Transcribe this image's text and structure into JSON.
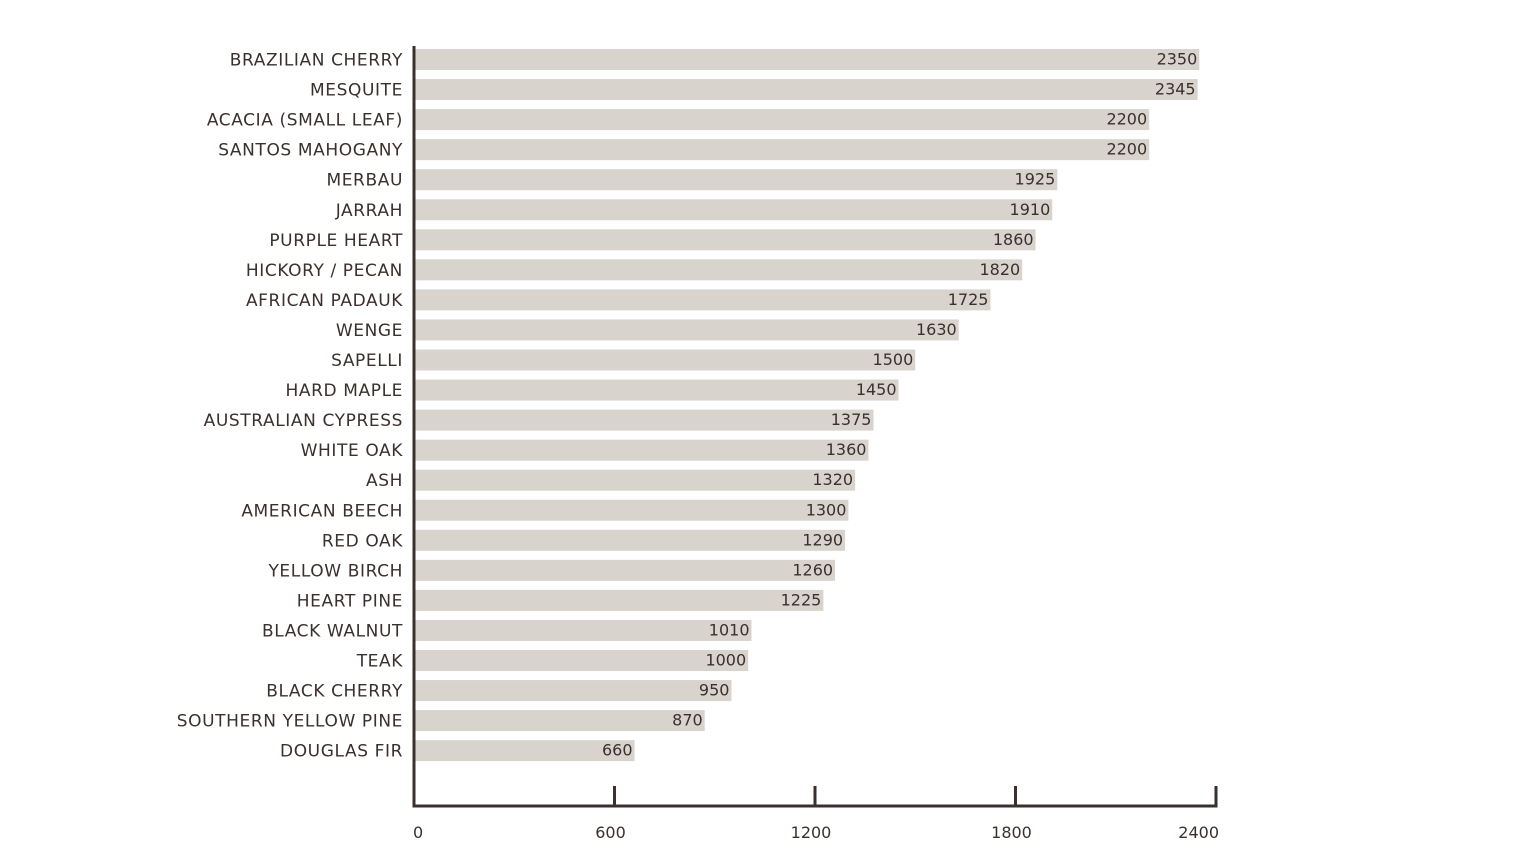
{
  "chart_data": {
    "type": "bar",
    "orientation": "horizontal",
    "title": "",
    "xlabel": "",
    "ylabel": "",
    "xlim": [
      0,
      2400
    ],
    "x_ticks": [
      "0",
      "600",
      "1200",
      "1800",
      "2400"
    ],
    "grid": false,
    "bar_color": "#d9d3cd",
    "axis_color": "#3a302d",
    "text_color": "#3a302d",
    "categories": [
      "BRAZILIAN CHERRY",
      "MESQUITE",
      "ACACIA (SMALL LEAF)",
      "SANTOS MAHOGANY",
      "MERBAU",
      "JARRAH",
      "PURPLE HEART",
      "HICKORY / PECAN",
      "AFRICAN PADAUK",
      "WENGE",
      "SAPELLI",
      "HARD MAPLE",
      "AUSTRALIAN CYPRESS",
      "WHITE OAK",
      "ASH",
      "AMERICAN BEECH",
      "RED OAK",
      "YELLOW BIRCH",
      "HEART PINE",
      "BLACK WALNUT",
      "TEAK",
      "BLACK CHERRY",
      "SOUTHERN YELLOW PINE",
      "DOUGLAS FIR"
    ],
    "values": [
      2350,
      2345,
      2200,
      2200,
      1925,
      1910,
      1860,
      1820,
      1725,
      1630,
      1500,
      1450,
      1375,
      1360,
      1320,
      1300,
      1290,
      1260,
      1225,
      1010,
      1000,
      950,
      870,
      660
    ],
    "value_labels": [
      "2350",
      "2345",
      "2200",
      "2200",
      "1925",
      "1910",
      "1860",
      "1820",
      "1725",
      "1630",
      "1500",
      "1450",
      "1375",
      "1360",
      "1320",
      "1300",
      "1290",
      "1260",
      "1225",
      "1010",
      "1000",
      "950",
      "870",
      "660"
    ]
  }
}
